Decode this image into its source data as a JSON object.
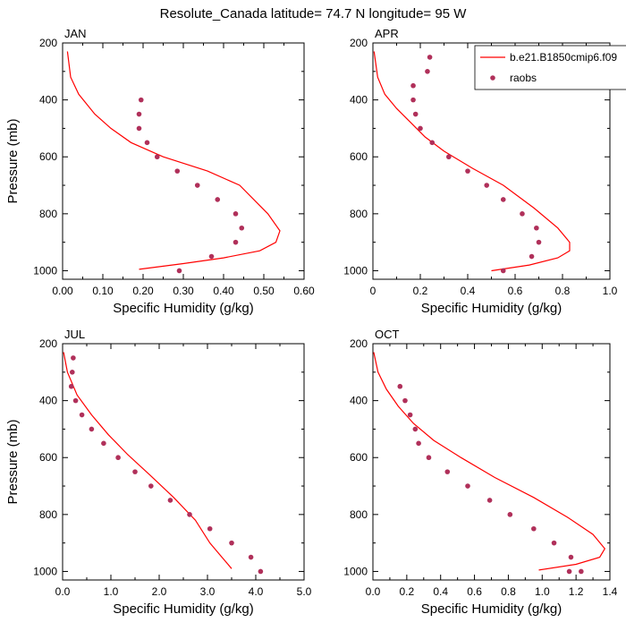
{
  "figure_title": "Resolute_Canada  latitude= 74.7 N longitude= 95 W",
  "colors": {
    "model": "#ff0000",
    "obs": "#b0305a"
  },
  "legend": {
    "model_label": "b.e21.B1850cmip6.f09",
    "obs_label": "raobs",
    "location": "top-right"
  },
  "chart_data": [
    {
      "type": "line",
      "panel": "JAN",
      "xlabel": "Specific Humidity (g/kg)",
      "ylabel": "Pressure (mb)",
      "xlim": [
        0,
        0.6
      ],
      "ylim": [
        200,
        1030
      ],
      "y_reversed": true,
      "xticks": [
        0,
        0.1,
        0.2,
        0.3,
        0.4,
        0.5,
        0.6
      ],
      "xtick_labels": [
        "0.00",
        "0.10",
        "0.20",
        "0.30",
        "0.40",
        "0.50",
        "0.60"
      ],
      "yticks": [
        200,
        400,
        600,
        800,
        1000
      ],
      "ytick_labels": [
        "200",
        "400",
        "600",
        "800",
        "1000"
      ],
      "series": [
        {
          "name": "b.e21.B1850cmip6.f09",
          "kind": "line",
          "x": [
            0.012,
            0.02,
            0.04,
            0.08,
            0.12,
            0.17,
            0.25,
            0.36,
            0.44,
            0.51,
            0.54,
            0.53,
            0.49,
            0.4,
            0.3,
            0.19
          ],
          "y": [
            230,
            320,
            380,
            450,
            500,
            550,
            600,
            650,
            700,
            800,
            860,
            900,
            930,
            955,
            975,
            995
          ]
        },
        {
          "name": "raobs",
          "kind": "scatter",
          "x": [
            0.195,
            0.19,
            0.19,
            0.21,
            0.235,
            0.285,
            0.335,
            0.385,
            0.43,
            0.445,
            0.43,
            0.37,
            0.29
          ],
          "y": [
            400,
            450,
            500,
            550,
            600,
            650,
            700,
            750,
            800,
            850,
            900,
            950,
            1000
          ]
        }
      ]
    },
    {
      "type": "line",
      "panel": "APR",
      "xlabel": "Specific Humidity (g/kg)",
      "ylabel": "",
      "xlim": [
        0,
        1.0
      ],
      "ylim": [
        200,
        1030
      ],
      "y_reversed": true,
      "xticks": [
        0,
        0.2,
        0.4,
        0.6,
        0.8,
        1.0
      ],
      "xtick_labels": [
        "0",
        "0.2",
        "0.4",
        "0.6",
        "0.8",
        "1.0"
      ],
      "yticks": [
        200,
        400,
        600,
        800,
        1000
      ],
      "ytick_labels": [
        "200",
        "400",
        "600",
        "800",
        "1000"
      ],
      "series": [
        {
          "name": "b.e21.B1850cmip6.f09",
          "kind": "line",
          "x": [
            0.005,
            0.02,
            0.05,
            0.1,
            0.16,
            0.22,
            0.3,
            0.42,
            0.55,
            0.68,
            0.78,
            0.83,
            0.83,
            0.78,
            0.66,
            0.5
          ],
          "y": [
            230,
            320,
            380,
            430,
            480,
            530,
            580,
            640,
            700,
            780,
            850,
            900,
            930,
            955,
            980,
            1000
          ]
        },
        {
          "name": "raobs",
          "kind": "scatter",
          "x": [
            0.24,
            0.23,
            0.17,
            0.17,
            0.18,
            0.2,
            0.25,
            0.32,
            0.4,
            0.48,
            0.55,
            0.63,
            0.69,
            0.7,
            0.67,
            0.55
          ],
          "y": [
            250,
            300,
            350,
            400,
            450,
            500,
            550,
            600,
            650,
            700,
            750,
            800,
            850,
            900,
            950,
            1000
          ]
        }
      ]
    },
    {
      "type": "line",
      "panel": "JUL",
      "xlabel": "Specific Humidity (g/kg)",
      "ylabel": "Pressure (mb)",
      "xlim": [
        0,
        5.0
      ],
      "ylim": [
        200,
        1030
      ],
      "y_reversed": true,
      "xticks": [
        0,
        1,
        2,
        3,
        4,
        5
      ],
      "xtick_labels": [
        "0.0",
        "1.0",
        "2.0",
        "3.0",
        "4.0",
        "5.0"
      ],
      "yticks": [
        200,
        400,
        600,
        800,
        1000
      ],
      "ytick_labels": [
        "200",
        "400",
        "600",
        "800",
        "1000"
      ],
      "series": [
        {
          "name": "b.e21.B1850cmip6.f09",
          "kind": "line",
          "x": [
            0.02,
            0.1,
            0.3,
            0.6,
            0.95,
            1.35,
            1.8,
            2.3,
            2.75,
            3.05,
            3.3,
            3.5
          ],
          "y": [
            230,
            300,
            380,
            450,
            520,
            590,
            660,
            740,
            820,
            900,
            950,
            990
          ]
        },
        {
          "name": "raobs",
          "kind": "scatter",
          "x": [
            0.22,
            0.2,
            0.18,
            0.27,
            0.4,
            0.6,
            0.85,
            1.15,
            1.5,
            1.83,
            2.23,
            2.63,
            3.05,
            3.5,
            3.9,
            4.1
          ],
          "y": [
            250,
            300,
            350,
            400,
            450,
            500,
            550,
            600,
            650,
            700,
            750,
            800,
            850,
            900,
            950,
            1000
          ]
        }
      ]
    },
    {
      "type": "line",
      "panel": "OCT",
      "xlabel": "Specific Humidity (g/kg)",
      "ylabel": "",
      "xlim": [
        0,
        1.4
      ],
      "ylim": [
        200,
        1030
      ],
      "y_reversed": true,
      "xticks": [
        0,
        0.2,
        0.4,
        0.6,
        0.8,
        1.0,
        1.2,
        1.4
      ],
      "xtick_labels": [
        "0.0",
        "0.2",
        "0.4",
        "0.6",
        "0.8",
        "1.0",
        "1.2",
        "1.4"
      ],
      "yticks": [
        200,
        400,
        600,
        800,
        1000
      ],
      "ytick_labels": [
        "200",
        "400",
        "600",
        "800",
        "1000"
      ],
      "series": [
        {
          "name": "b.e21.B1850cmip6.f09",
          "kind": "line",
          "x": [
            0.005,
            0.03,
            0.08,
            0.15,
            0.24,
            0.36,
            0.52,
            0.72,
            0.95,
            1.15,
            1.3,
            1.37,
            1.34,
            1.2,
            0.98
          ],
          "y": [
            230,
            300,
            360,
            420,
            480,
            540,
            600,
            670,
            740,
            810,
            870,
            920,
            950,
            975,
            995
          ]
        },
        {
          "name": "raobs",
          "kind": "scatter",
          "x": [
            0.16,
            0.19,
            0.22,
            0.25,
            0.27,
            0.33,
            0.44,
            0.56,
            0.69,
            0.81,
            0.95,
            1.07,
            1.17,
            1.23,
            1.16
          ],
          "y": [
            350,
            400,
            450,
            500,
            550,
            600,
            650,
            700,
            750,
            800,
            850,
            900,
            950,
            1000,
            1000
          ]
        }
      ]
    }
  ]
}
